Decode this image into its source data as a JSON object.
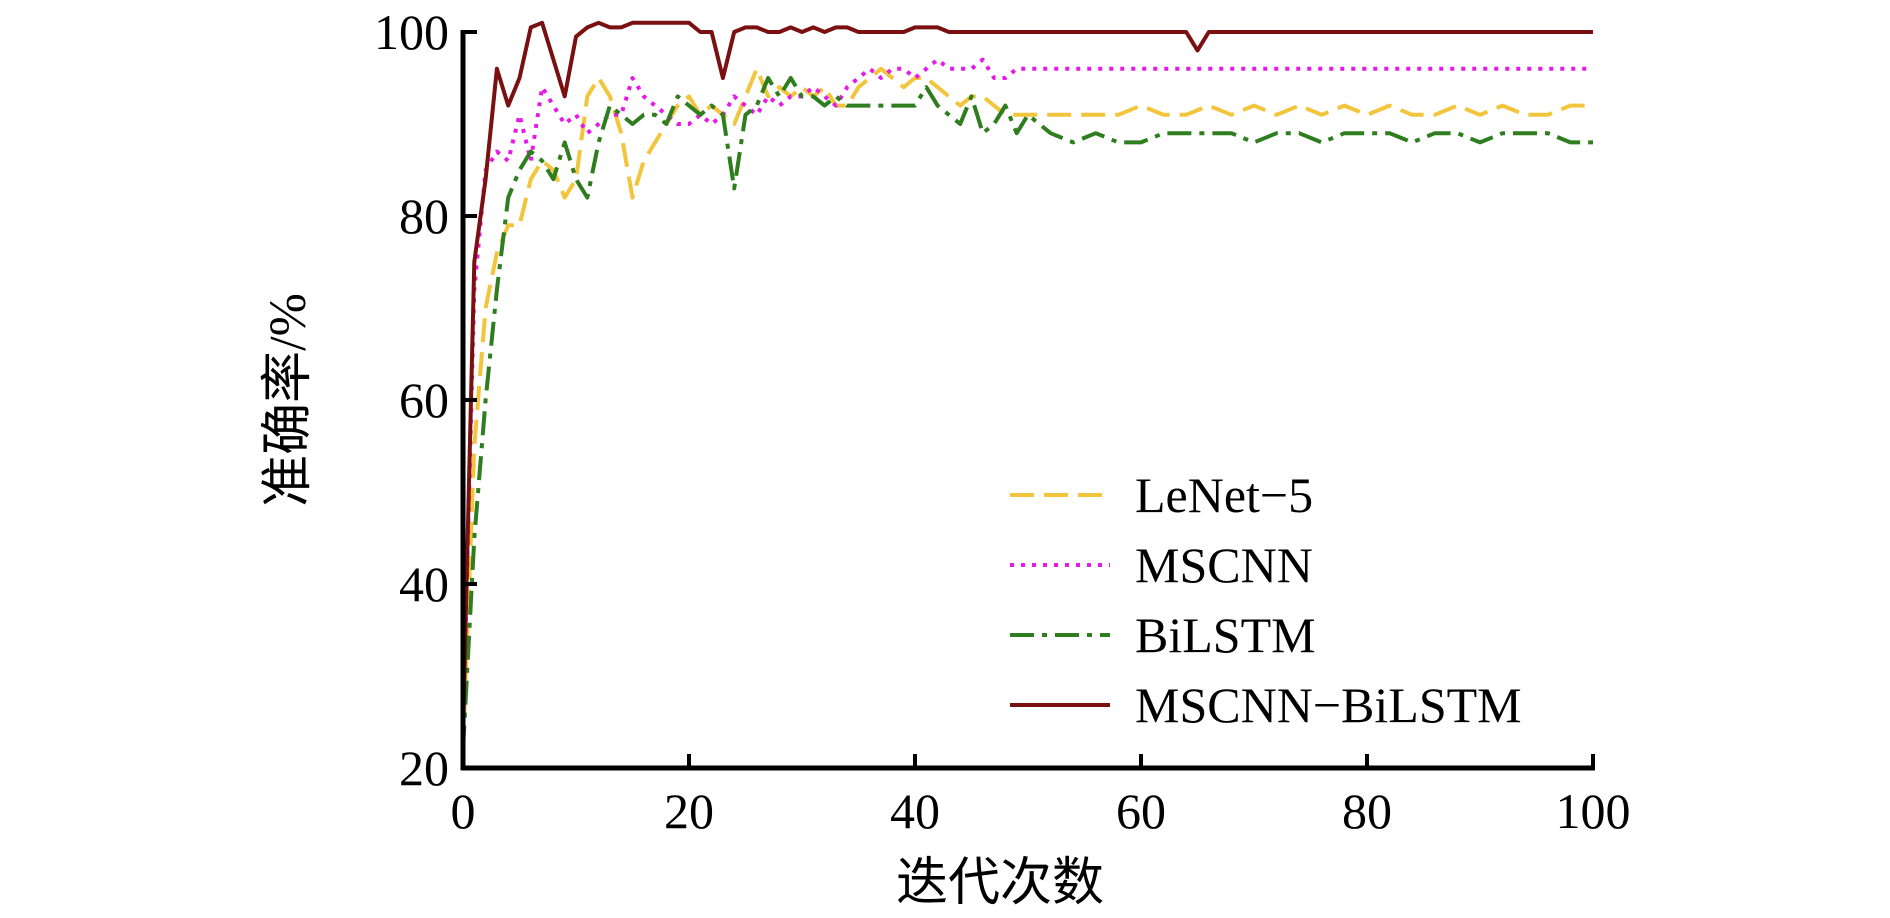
{
  "chart_data": {
    "type": "line",
    "xlabel": "迭代次数",
    "ylabel": "准确率/%",
    "xlim": [
      0,
      100
    ],
    "ylim": [
      20,
      100
    ],
    "xticks": [
      0,
      20,
      40,
      60,
      80,
      100
    ],
    "yticks": [
      20,
      40,
      60,
      80,
      100
    ],
    "grid": false,
    "legend_position": "bottom-right",
    "series": [
      {
        "name": "LeNet−5",
        "color": "#f2c53d",
        "style": "dashed",
        "x": [
          0,
          1,
          2,
          3,
          4,
          5,
          6,
          7,
          8,
          9,
          10,
          11,
          12,
          13,
          14,
          15,
          16,
          17,
          18,
          19,
          20,
          21,
          22,
          23,
          24,
          25,
          26,
          27,
          28,
          29,
          30,
          31,
          32,
          33,
          34,
          35,
          36,
          37,
          38,
          39,
          40,
          41,
          42,
          43,
          44,
          45,
          46,
          47,
          48,
          49,
          50,
          52,
          54,
          56,
          58,
          60,
          62,
          64,
          66,
          68,
          70,
          72,
          74,
          76,
          78,
          80,
          82,
          84,
          86,
          88,
          90,
          92,
          94,
          96,
          98,
          100
        ],
        "y": [
          22,
          55,
          70,
          76,
          79,
          79,
          84,
          86,
          85,
          82,
          84,
          93,
          95,
          93,
          89,
          82,
          86,
          88,
          90,
          92,
          93,
          91,
          92,
          91,
          90,
          93,
          96,
          93,
          94,
          93,
          94,
          93,
          94,
          92,
          92,
          94,
          95,
          96,
          95,
          94,
          95,
          95,
          94,
          93,
          92,
          93,
          93,
          92,
          91,
          91,
          91,
          91,
          91,
          91,
          91,
          92,
          91,
          91,
          92,
          91,
          92,
          91,
          92,
          91,
          92,
          91,
          92,
          91,
          91,
          92,
          91,
          92,
          91,
          91,
          92,
          92
        ]
      },
      {
        "name": "MSCNN",
        "color": "#e619e6",
        "style": "dotted",
        "x": [
          0,
          1,
          2,
          3,
          4,
          5,
          6,
          7,
          8,
          9,
          10,
          11,
          12,
          13,
          14,
          15,
          16,
          17,
          18,
          19,
          20,
          21,
          22,
          23,
          24,
          25,
          26,
          27,
          28,
          29,
          30,
          31,
          32,
          33,
          34,
          35,
          36,
          37,
          38,
          39,
          40,
          41,
          42,
          43,
          44,
          45,
          46,
          47,
          48,
          49,
          50,
          52,
          54,
          56,
          58,
          60,
          62,
          64,
          66,
          68,
          70,
          72,
          74,
          76,
          78,
          80,
          82,
          84,
          86,
          88,
          90,
          92,
          94,
          96,
          98,
          100
        ],
        "y": [
          24,
          72,
          85,
          87,
          86,
          91,
          86,
          94,
          92,
          90,
          91,
          89,
          90,
          91,
          91,
          95,
          93,
          92,
          91,
          90,
          90,
          91,
          90,
          91,
          93,
          92,
          91,
          93,
          92,
          93,
          93,
          94,
          93,
          92,
          94,
          95,
          96,
          95,
          96,
          96,
          95,
          96,
          97,
          96,
          96,
          96,
          97,
          95,
          95,
          96,
          96,
          96,
          96,
          96,
          96,
          96,
          96,
          96,
          96,
          96,
          96,
          96,
          96,
          96,
          96,
          96,
          96,
          96,
          96,
          96,
          96,
          96,
          96,
          96,
          96,
          96
        ]
      },
      {
        "name": "BiLSTM",
        "color": "#2e7d1e",
        "style": "dash-dot",
        "x": [
          0,
          1,
          2,
          3,
          4,
          5,
          6,
          7,
          8,
          9,
          10,
          11,
          12,
          13,
          14,
          15,
          16,
          17,
          18,
          19,
          20,
          21,
          22,
          23,
          24,
          25,
          26,
          27,
          28,
          29,
          30,
          31,
          32,
          33,
          34,
          35,
          36,
          37,
          38,
          39,
          40,
          41,
          42,
          43,
          44,
          45,
          46,
          47,
          48,
          49,
          50,
          52,
          54,
          56,
          58,
          60,
          62,
          64,
          66,
          68,
          70,
          72,
          74,
          76,
          78,
          80,
          82,
          84,
          86,
          88,
          90,
          92,
          94,
          96,
          98,
          100
        ],
        "y": [
          22,
          45,
          60,
          72,
          82,
          85,
          87,
          86,
          84,
          88,
          84,
          82,
          88,
          92,
          91,
          90,
          91,
          91,
          90,
          93,
          92,
          91,
          92,
          91,
          83,
          91,
          92,
          95,
          93,
          95,
          93,
          93,
          92,
          93,
          92,
          92,
          92,
          92,
          92,
          92,
          92,
          94,
          92,
          91,
          90,
          93,
          89,
          90,
          92,
          89,
          91,
          89,
          88,
          89,
          88,
          88,
          89,
          89,
          89,
          89,
          88,
          89,
          89,
          88,
          89,
          89,
          89,
          88,
          89,
          89,
          88,
          89,
          89,
          89,
          88,
          88
        ]
      },
      {
        "name": "MSCNN−BiLSTM",
        "color": "#7a1010",
        "style": "solid",
        "x": [
          0,
          1,
          2,
          3,
          4,
          5,
          6,
          7,
          8,
          9,
          10,
          11,
          12,
          13,
          14,
          15,
          16,
          17,
          18,
          19,
          20,
          21,
          22,
          23,
          24,
          25,
          26,
          27,
          28,
          29,
          30,
          31,
          32,
          33,
          34,
          35,
          36,
          37,
          38,
          39,
          40,
          41,
          42,
          43,
          44,
          45,
          46,
          47,
          48,
          49,
          50,
          52,
          54,
          56,
          58,
          60,
          62,
          64,
          65,
          66,
          68,
          70,
          72,
          74,
          76,
          78,
          80,
          82,
          84,
          86,
          88,
          90,
          92,
          94,
          96,
          98,
          100
        ],
        "y": [
          24,
          75,
          84,
          96,
          92,
          95,
          100.5,
          101,
          97,
          93,
          99.5,
          100.5,
          101,
          100.5,
          100.5,
          101,
          101,
          101,
          101,
          101,
          101,
          100,
          100,
          95,
          100,
          100.5,
          100.5,
          100,
          100,
          100.5,
          100,
          100.5,
          100,
          100.5,
          100.5,
          100,
          100,
          100,
          100,
          100,
          100.5,
          100.5,
          100.5,
          100,
          100,
          100,
          100,
          100,
          100,
          100,
          100,
          100,
          100,
          100,
          100,
          100,
          100,
          100,
          98,
          100,
          100,
          100,
          100,
          100,
          100,
          100,
          100,
          100,
          100,
          100,
          100,
          100,
          100,
          100,
          100,
          100,
          100
        ]
      }
    ]
  }
}
